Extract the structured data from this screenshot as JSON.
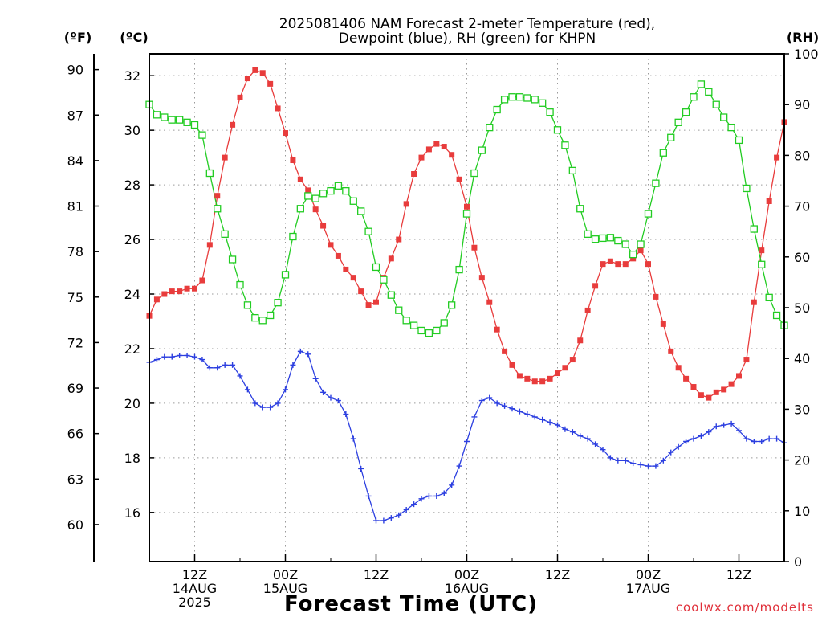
{
  "chart_data": {
    "type": "line",
    "title": [
      "2025081406 NAM Forecast 2-meter Temperature (red),",
      "Dewpoint (blue), RH (green) for KHPN"
    ],
    "xlabel": "Forecast Time (UTC)",
    "credit": "coolwx.com/modelts",
    "units": {
      "fahrenheit": "(ºF)",
      "celsius": "(ºC)",
      "rh": "(RH)"
    },
    "x_start_hour": 6,
    "x_end_hour": 90,
    "x_ticks": [
      {
        "hour": 12,
        "lines": [
          "12Z",
          "14AUG",
          "2025"
        ]
      },
      {
        "hour": 24,
        "lines": [
          "00Z",
          "15AUG"
        ]
      },
      {
        "hour": 36,
        "lines": [
          "12Z"
        ]
      },
      {
        "hour": 48,
        "lines": [
          "00Z",
          "16AUG"
        ]
      },
      {
        "hour": 60,
        "lines": [
          "12Z"
        ]
      },
      {
        "hour": 72,
        "lines": [
          "00Z",
          "17AUG"
        ]
      },
      {
        "hour": 84,
        "lines": [
          "12Z"
        ]
      }
    ],
    "y_celsius": {
      "ylim": [
        14.2,
        32.8
      ],
      "ticks": [
        16,
        18,
        20,
        22,
        24,
        26,
        28,
        30,
        32
      ]
    },
    "y_fahrenheit": {
      "ticks": [
        60,
        63,
        66,
        69,
        72,
        75,
        78,
        81,
        84,
        87,
        90
      ]
    },
    "y_rh": {
      "ylim": [
        0,
        100
      ],
      "ticks": [
        0,
        10,
        20,
        30,
        40,
        50,
        60,
        70,
        80,
        90,
        100
      ]
    },
    "grid": true,
    "colors": {
      "temperature": "#e83c3c",
      "dewpoint": "#2c3fe0",
      "rh": "#22cc22"
    },
    "series": [
      {
        "name": "Temperature",
        "units": "degC",
        "color": "#e83c3c",
        "marker": "filled-square",
        "points": [
          [
            6,
            23.2
          ],
          [
            7,
            23.8
          ],
          [
            8,
            24.0
          ],
          [
            9,
            24.1
          ],
          [
            10,
            24.1
          ],
          [
            11,
            24.2
          ],
          [
            12,
            24.2
          ],
          [
            13,
            24.5
          ],
          [
            14,
            25.8
          ],
          [
            15,
            27.6
          ],
          [
            16,
            29.0
          ],
          [
            17,
            30.2
          ],
          [
            18,
            31.2
          ],
          [
            19,
            31.9
          ],
          [
            20,
            32.2
          ],
          [
            21,
            32.1
          ],
          [
            22,
            31.7
          ],
          [
            23,
            30.8
          ],
          [
            24,
            29.9
          ],
          [
            25,
            28.9
          ],
          [
            26,
            28.2
          ],
          [
            27,
            27.8
          ],
          [
            28,
            27.1
          ],
          [
            29,
            26.5
          ],
          [
            30,
            25.8
          ],
          [
            31,
            25.4
          ],
          [
            32,
            24.9
          ],
          [
            33,
            24.6
          ],
          [
            34,
            24.1
          ],
          [
            35,
            23.6
          ],
          [
            36,
            23.7
          ],
          [
            37,
            24.6
          ],
          [
            38,
            25.3
          ],
          [
            39,
            26.0
          ],
          [
            40,
            27.3
          ],
          [
            41,
            28.4
          ],
          [
            42,
            29.0
          ],
          [
            43,
            29.3
          ],
          [
            44,
            29.5
          ],
          [
            45,
            29.4
          ],
          [
            46,
            29.1
          ],
          [
            47,
            28.2
          ],
          [
            48,
            27.2
          ],
          [
            49,
            25.7
          ],
          [
            50,
            24.6
          ],
          [
            51,
            23.7
          ],
          [
            52,
            22.7
          ],
          [
            53,
            21.9
          ],
          [
            54,
            21.4
          ],
          [
            55,
            21.0
          ],
          [
            56,
            20.9
          ],
          [
            57,
            20.8
          ],
          [
            58,
            20.8
          ],
          [
            59,
            20.9
          ],
          [
            60,
            21.1
          ],
          [
            61,
            21.3
          ],
          [
            62,
            21.6
          ],
          [
            63,
            22.3
          ],
          [
            64,
            23.4
          ],
          [
            65,
            24.3
          ],
          [
            66,
            25.1
          ],
          [
            67,
            25.2
          ],
          [
            68,
            25.1
          ],
          [
            69,
            25.1
          ],
          [
            70,
            25.3
          ],
          [
            71,
            25.6
          ],
          [
            72,
            25.1
          ],
          [
            73,
            23.9
          ],
          [
            74,
            22.9
          ],
          [
            75,
            21.9
          ],
          [
            76,
            21.3
          ],
          [
            77,
            20.9
          ],
          [
            78,
            20.6
          ],
          [
            79,
            20.3
          ],
          [
            80,
            20.2
          ],
          [
            81,
            20.4
          ],
          [
            82,
            20.5
          ],
          [
            83,
            20.7
          ],
          [
            84,
            21.0
          ],
          [
            85,
            21.6
          ],
          [
            86,
            23.7
          ],
          [
            87,
            25.6
          ],
          [
            88,
            27.4
          ],
          [
            89,
            29.0
          ],
          [
            90,
            30.3
          ],
          [
            91,
            31.1
          ]
        ]
      },
      {
        "name": "Dewpoint",
        "units": "degC",
        "color": "#2c3fe0",
        "marker": "plus",
        "points": [
          [
            6,
            21.5
          ],
          [
            7,
            21.6
          ],
          [
            8,
            21.7
          ],
          [
            9,
            21.7
          ],
          [
            10,
            21.75
          ],
          [
            11,
            21.75
          ],
          [
            12,
            21.7
          ],
          [
            13,
            21.6
          ],
          [
            14,
            21.3
          ],
          [
            15,
            21.3
          ],
          [
            16,
            21.4
          ],
          [
            17,
            21.4
          ],
          [
            18,
            21.0
          ],
          [
            19,
            20.5
          ],
          [
            20,
            20.0
          ],
          [
            21,
            19.85
          ],
          [
            22,
            19.85
          ],
          [
            23,
            20.0
          ],
          [
            24,
            20.5
          ],
          [
            25,
            21.4
          ],
          [
            26,
            21.9
          ],
          [
            27,
            21.8
          ],
          [
            28,
            20.9
          ],
          [
            29,
            20.4
          ],
          [
            30,
            20.2
          ],
          [
            31,
            20.1
          ],
          [
            32,
            19.6
          ],
          [
            33,
            18.7
          ],
          [
            34,
            17.6
          ],
          [
            35,
            16.6
          ],
          [
            36,
            15.7
          ],
          [
            37,
            15.7
          ],
          [
            38,
            15.8
          ],
          [
            39,
            15.9
          ],
          [
            40,
            16.1
          ],
          [
            41,
            16.3
          ],
          [
            42,
            16.5
          ],
          [
            43,
            16.6
          ],
          [
            44,
            16.6
          ],
          [
            45,
            16.7
          ],
          [
            46,
            17.0
          ],
          [
            47,
            17.7
          ],
          [
            48,
            18.6
          ],
          [
            49,
            19.5
          ],
          [
            50,
            20.1
          ],
          [
            51,
            20.2
          ],
          [
            52,
            20.0
          ],
          [
            53,
            19.9
          ],
          [
            54,
            19.8
          ],
          [
            55,
            19.7
          ],
          [
            56,
            19.6
          ],
          [
            57,
            19.5
          ],
          [
            58,
            19.4
          ],
          [
            59,
            19.3
          ],
          [
            60,
            19.2
          ],
          [
            61,
            19.05
          ],
          [
            62,
            18.95
          ],
          [
            63,
            18.8
          ],
          [
            64,
            18.7
          ],
          [
            65,
            18.5
          ],
          [
            66,
            18.3
          ],
          [
            67,
            18.0
          ],
          [
            68,
            17.9
          ],
          [
            69,
            17.9
          ],
          [
            70,
            17.8
          ],
          [
            71,
            17.75
          ],
          [
            72,
            17.7
          ],
          [
            73,
            17.7
          ],
          [
            74,
            17.9
          ],
          [
            75,
            18.2
          ],
          [
            76,
            18.4
          ],
          [
            77,
            18.6
          ],
          [
            78,
            18.7
          ],
          [
            79,
            18.8
          ],
          [
            80,
            18.95
          ],
          [
            81,
            19.15
          ],
          [
            82,
            19.2
          ],
          [
            83,
            19.25
          ],
          [
            84,
            19.0
          ],
          [
            85,
            18.7
          ],
          [
            86,
            18.6
          ],
          [
            87,
            18.6
          ],
          [
            88,
            18.7
          ],
          [
            89,
            18.7
          ],
          [
            90,
            18.55
          ],
          [
            91,
            18.45
          ]
        ]
      },
      {
        "name": "RH",
        "units": "%",
        "color": "#22cc22",
        "marker": "open-square",
        "points": [
          [
            6,
            90.0
          ],
          [
            7,
            88.0
          ],
          [
            8,
            87.5
          ],
          [
            9,
            87.0
          ],
          [
            10,
            87.0
          ],
          [
            11,
            86.5
          ],
          [
            12,
            86.0
          ],
          [
            13,
            84.0
          ],
          [
            14,
            76.5
          ],
          [
            15,
            69.5
          ],
          [
            16,
            64.5
          ],
          [
            17,
            59.5
          ],
          [
            18,
            54.5
          ],
          [
            19,
            50.5
          ],
          [
            20,
            48.0
          ],
          [
            21,
            47.5
          ],
          [
            22,
            48.5
          ],
          [
            23,
            51.0
          ],
          [
            24,
            56.5
          ],
          [
            25,
            64.0
          ],
          [
            26,
            69.5
          ],
          [
            27,
            72.0
          ],
          [
            28,
            71.5
          ],
          [
            29,
            72.5
          ],
          [
            30,
            73.0
          ],
          [
            31,
            74.0
          ],
          [
            32,
            73.0
          ],
          [
            33,
            71.0
          ],
          [
            34,
            69.0
          ],
          [
            35,
            65.0
          ],
          [
            36,
            58.0
          ],
          [
            37,
            55.5
          ],
          [
            38,
            52.5
          ],
          [
            39,
            49.5
          ],
          [
            40,
            47.5
          ],
          [
            41,
            46.5
          ],
          [
            42,
            45.5
          ],
          [
            43,
            45.0
          ],
          [
            44,
            45.5
          ],
          [
            45,
            47.0
          ],
          [
            46,
            50.5
          ],
          [
            47,
            57.5
          ],
          [
            48,
            68.5
          ],
          [
            49,
            76.5
          ],
          [
            50,
            81.0
          ],
          [
            51,
            85.5
          ],
          [
            52,
            89.0
          ],
          [
            53,
            91.0
          ],
          [
            54,
            91.5
          ],
          [
            55,
            91.5
          ],
          [
            56,
            91.3
          ],
          [
            57,
            91.0
          ],
          [
            58,
            90.3
          ],
          [
            59,
            88.5
          ],
          [
            60,
            85.0
          ],
          [
            61,
            82.0
          ],
          [
            62,
            77.0
          ],
          [
            63,
            69.5
          ],
          [
            64,
            64.5
          ],
          [
            65,
            63.5
          ],
          [
            66,
            63.7
          ],
          [
            67,
            63.8
          ],
          [
            68,
            63.2
          ],
          [
            69,
            62.5
          ],
          [
            70,
            60.5
          ],
          [
            71,
            62.5
          ],
          [
            72,
            68.5
          ],
          [
            73,
            74.5
          ],
          [
            74,
            80.5
          ],
          [
            75,
            83.5
          ],
          [
            76,
            86.5
          ],
          [
            77,
            88.5
          ],
          [
            78,
            91.5
          ],
          [
            79,
            94.0
          ],
          [
            80,
            92.5
          ],
          [
            81,
            90.0
          ],
          [
            82,
            87.5
          ],
          [
            83,
            85.5
          ],
          [
            84,
            83.0
          ],
          [
            85,
            73.5
          ],
          [
            86,
            65.5
          ],
          [
            87,
            58.5
          ],
          [
            88,
            52.0
          ],
          [
            89,
            48.5
          ],
          [
            90,
            46.5
          ],
          [
            91,
            44.5
          ]
        ]
      }
    ]
  }
}
